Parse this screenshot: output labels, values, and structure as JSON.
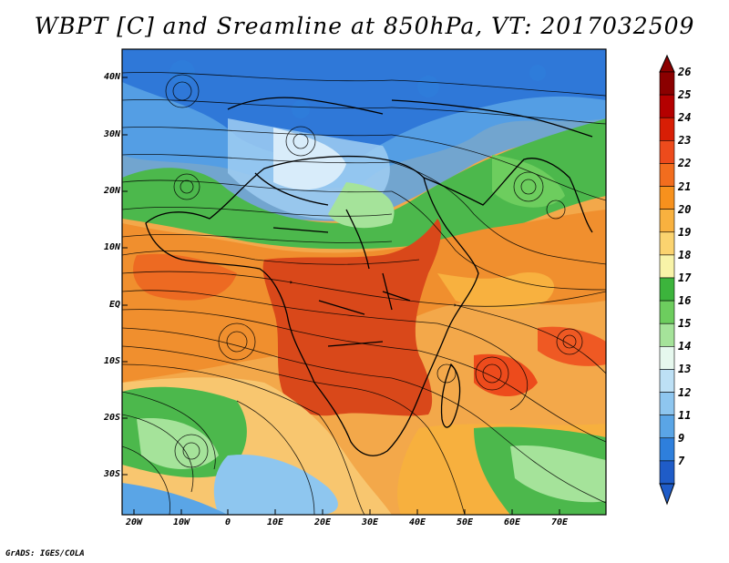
{
  "title": "WBPT [C] and Sreamline at 850hPa, VT: 2017032509",
  "footer": "GrADS: IGES/COLA",
  "latitude_labels": [
    "40N",
    "30N",
    "20N",
    "10N",
    "EQ",
    "10S",
    "20S",
    "30S"
  ],
  "longitude_labels": [
    "20W",
    "10W",
    "0",
    "10E",
    "20E",
    "30E",
    "40E",
    "50E",
    "60E",
    "70E"
  ],
  "colorbar": {
    "labels": [
      "26",
      "25",
      "24",
      "23",
      "22",
      "21",
      "20",
      "19",
      "18",
      "17",
      "16",
      "15",
      "14",
      "13",
      "12",
      "11",
      "9",
      "7"
    ],
    "colors": [
      "#8b0000",
      "#b40000",
      "#d81e05",
      "#ed4b1c",
      "#f26d1e",
      "#f7911d",
      "#f8b13f",
      "#fbd36f",
      "#f8f3a8",
      "#3cb43c",
      "#6dcd5e",
      "#a5e39a",
      "#e6f8ee",
      "#bde0f5",
      "#8ec6ef",
      "#5aa5e6",
      "#2e7fdc",
      "#1f5cc8"
    ]
  },
  "colors": {
    "warm_core": "#d9481a",
    "warm": "#f08f2e",
    "mild": "#f7c26a",
    "green": "#4cb84c",
    "cool": "#9fcdf2",
    "cold": "#2f78d8",
    "streamline": "#000000"
  }
}
